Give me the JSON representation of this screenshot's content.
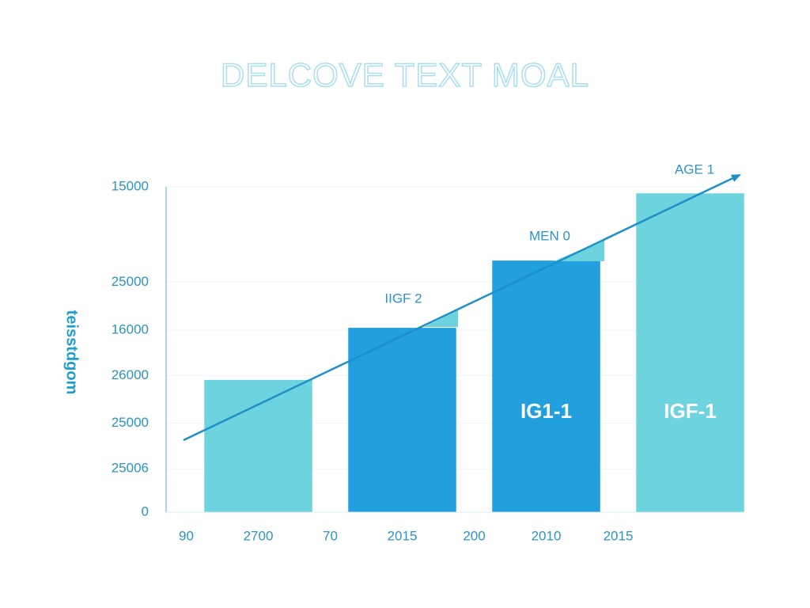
{
  "chart_data": {
    "type": "bar",
    "title": "DELCOVE TEXT MOAL",
    "y_label": "teisstdgom",
    "categories": [
      "90",
      "2700",
      "70",
      "2015",
      "200",
      "2010",
      "2015",
      null
    ],
    "values": [
      null,
      6100,
      null,
      8500,
      null,
      11600,
      null,
      14700
    ],
    "colors": [
      null,
      "#6dd3df",
      null,
      "#22a0de",
      null,
      "#22a0de",
      null,
      "#6dd3df"
    ],
    "bar_labels": [
      null,
      null,
      null,
      null,
      null,
      "IG1-1",
      null,
      "IGF-1"
    ],
    "annotations": [
      "IIGF 2",
      "MEN 0",
      "AGE 1"
    ],
    "ylim": [
      0,
      15000
    ],
    "yticks": [
      0,
      {
        "value": 2000,
        "label": "25006"
      },
      {
        "value": 4100,
        "label": "25000"
      },
      {
        "value": 6300,
        "label": "26000"
      },
      {
        "value": 8400,
        "label": "16000"
      },
      {
        "value": 10600,
        "label": "25000"
      },
      {
        "value": 15000,
        "label": "15000"
      }
    ],
    "grid": true
  }
}
